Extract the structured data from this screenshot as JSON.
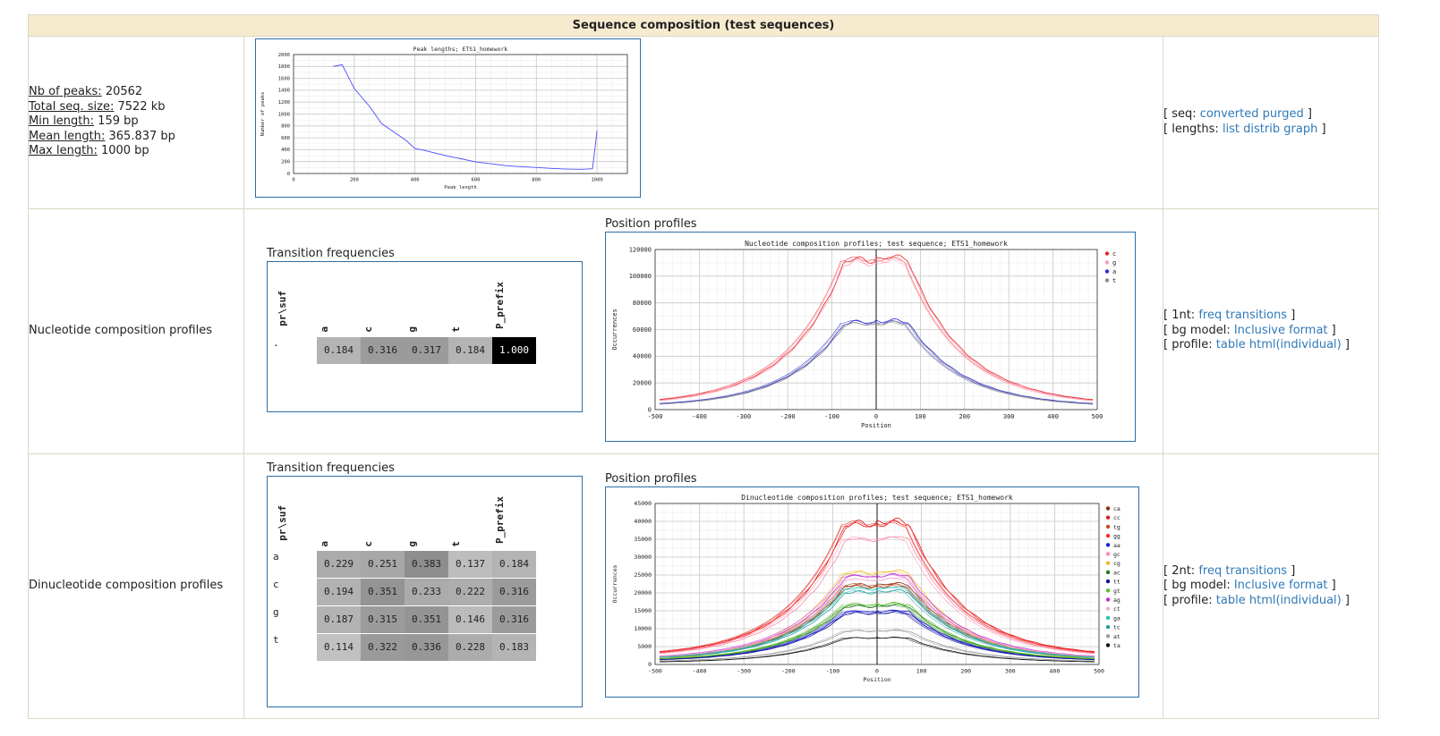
{
  "header": {
    "title": "Sequence composition (test sequences)"
  },
  "stats": {
    "peaks_label": "Nb of peaks:",
    "peaks_value": "20562",
    "size_label": "Total seq. size:",
    "size_value": "7522 kb",
    "min_label": "Min length:",
    "min_value": "159 bp",
    "mean_label": "Mean length:",
    "mean_value": "365.837 bp",
    "max_label": "Max length:",
    "max_value": "1000 bp"
  },
  "row1_links": {
    "seq_open": "[ seq:",
    "seq_link1": "converted",
    "seq_link2": "purged",
    "seq_close": "]",
    "len_open": "[ lengths:",
    "len_link1": "list",
    "len_link2": "distrib",
    "len_link3": "graph",
    "len_close": "]"
  },
  "row2": {
    "label": "Nucleotide composition profiles"
  },
  "row3": {
    "label": "Dinucleotide composition profiles"
  },
  "row2_links": {
    "a_open": "[ 1nt:",
    "a_l1": "freq",
    "a_l2": "transitions",
    "a_close": "]",
    "b_open": "[ bg model:",
    "b_l1": "Inclusive",
    "b_l2": "format",
    "b_close": "]",
    "c_open": "[ profile:",
    "c_l1": "table",
    "c_l2": "html(individual)",
    "c_close": "]"
  },
  "row3_links": {
    "a_open": "[ 2nt:",
    "a_l1": "freq",
    "a_l2": "transitions",
    "a_close": "]",
    "b_open": "[ bg model:",
    "b_l1": "Inclusive",
    "b_l2": "format",
    "b_close": "]",
    "c_open": "[ profile:",
    "c_l1": "table",
    "c_l2": "html(individual)",
    "c_close": "]"
  },
  "captions": {
    "tf": "Transition frequencies",
    "pp": "Position profiles"
  },
  "transition_1nt": {
    "corner": "pr\\suf",
    "cols": [
      "a",
      "c",
      "g",
      "t",
      "P_prefix"
    ],
    "rows": [
      {
        "label": ".",
        "values": [
          "0.184",
          "0.316",
          "0.317",
          "0.184",
          "1.000"
        ]
      }
    ]
  },
  "transition_2nt": {
    "corner": "pr\\suf",
    "cols": [
      "a",
      "c",
      "g",
      "t",
      "P_prefix"
    ],
    "rows": [
      {
        "label": "a",
        "values": [
          "0.229",
          "0.251",
          "0.383",
          "0.137",
          "0.184"
        ]
      },
      {
        "label": "c",
        "values": [
          "0.194",
          "0.351",
          "0.233",
          "0.222",
          "0.316"
        ]
      },
      {
        "label": "g",
        "values": [
          "0.187",
          "0.315",
          "0.351",
          "0.146",
          "0.316"
        ]
      },
      {
        "label": "t",
        "values": [
          "0.114",
          "0.322",
          "0.336",
          "0.228",
          "0.183"
        ]
      }
    ]
  },
  "chart_data": [
    {
      "type": "line",
      "title": "Peak lengths; ETS1_homework",
      "xlabel": "Peak length",
      "ylabel": "Number of peaks",
      "xlim": [
        0,
        1100
      ],
      "ylim": [
        0,
        2000
      ],
      "xticks": [
        0,
        200,
        400,
        600,
        800,
        1000
      ],
      "yticks": [
        0,
        200,
        400,
        600,
        800,
        1000,
        1200,
        1400,
        1600,
        1800,
        2000
      ],
      "grid": true,
      "series": [
        {
          "color": "#4b4bff",
          "x": [
            130,
            160,
            200,
            250,
            290,
            330,
            370,
            400,
            430,
            470,
            510,
            550,
            600,
            650,
            700,
            750,
            800,
            850,
            900,
            950,
            985,
            995,
            1000
          ],
          "y": [
            1800,
            1830,
            1430,
            1130,
            840,
            700,
            560,
            420,
            390,
            340,
            290,
            250,
            195,
            165,
            130,
            115,
            100,
            85,
            75,
            70,
            80,
            500,
            720
          ]
        }
      ]
    },
    {
      "type": "line",
      "title": "Nucleotide composition profiles; test sequence; ETS1_homework",
      "xlabel": "Position",
      "ylabel": "Occurrences",
      "xlim": [
        -500,
        500
      ],
      "ylim": [
        0,
        120000
      ],
      "xticks": [
        -500,
        -400,
        -300,
        -200,
        -100,
        0,
        100,
        200,
        300,
        400,
        500
      ],
      "yticks": [
        0,
        20000,
        40000,
        60000,
        80000,
        100000,
        120000
      ],
      "legend": "right",
      "grid": true,
      "series": [
        {
          "name": "c",
          "color": "#e8262b",
          "peak": 114000,
          "base": 3500
        },
        {
          "name": "g",
          "color": "#ff9fb2",
          "peak": 112000,
          "base": 2800
        },
        {
          "name": "a",
          "color": "#2b2bd9",
          "peak": 66500,
          "base": 2200
        },
        {
          "name": "t",
          "color": "#8c8c8c",
          "peak": 65000,
          "base": 1800
        }
      ]
    },
    {
      "type": "line",
      "title": "Dinucleotide composition profiles; test sequence; ETS1_homework",
      "xlabel": "Position",
      "ylabel": "Occurrences",
      "xlim": [
        -500,
        500
      ],
      "ylim": [
        0,
        45000
      ],
      "xticks": [
        -500,
        -400,
        -300,
        -200,
        -100,
        0,
        100,
        200,
        300,
        400,
        500
      ],
      "yticks": [
        0,
        5000,
        10000,
        15000,
        20000,
        25000,
        30000,
        35000,
        40000,
        45000
      ],
      "legend": "right",
      "grid": true,
      "series": [
        {
          "name": "ca",
          "color": "#8b2d10",
          "peak": 22500,
          "base": 1400
        },
        {
          "name": "cc",
          "color": "#d61f1f",
          "peak": 40000,
          "base": 2200
        },
        {
          "name": "tg",
          "color": "#c8501c",
          "peak": 22000,
          "base": 1300
        },
        {
          "name": "gg",
          "color": "#ff2b2b",
          "peak": 39500,
          "base": 2000
        },
        {
          "name": "aa",
          "color": "#1d1dd9",
          "peak": 15000,
          "base": 900
        },
        {
          "name": "gc",
          "color": "#ff8aa8",
          "peak": 35500,
          "base": 1900
        },
        {
          "name": "cg",
          "color": "#f2b820",
          "peak": 26000,
          "base": 700
        },
        {
          "name": "ac",
          "color": "#1f7a1f",
          "peak": 16500,
          "base": 1000
        },
        {
          "name": "tt",
          "color": "#1515a0",
          "peak": 14500,
          "base": 850
        },
        {
          "name": "gt",
          "color": "#5cbf2a",
          "peak": 17000,
          "base": 1050
        },
        {
          "name": "ag",
          "color": "#c52ad6",
          "peak": 25000,
          "base": 1500
        },
        {
          "name": "ct",
          "color": "#f3b0d6",
          "peak": 24000,
          "base": 1450
        },
        {
          "name": "ga",
          "color": "#28c4c4",
          "peak": 21500,
          "base": 1300
        },
        {
          "name": "tc",
          "color": "#27a0a0",
          "peak": 20500,
          "base": 1250
        },
        {
          "name": "at",
          "color": "#9c9c9c",
          "peak": 9500,
          "base": 650
        },
        {
          "name": "ta",
          "color": "#111111",
          "peak": 7500,
          "base": 500
        }
      ]
    }
  ]
}
